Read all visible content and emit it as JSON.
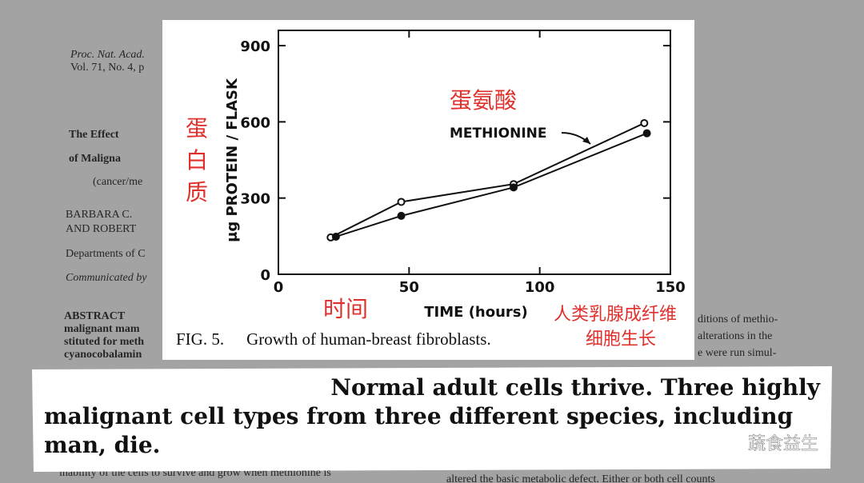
{
  "chart_data": {
    "type": "line",
    "y_label": "μg PROTEIN / FLASK",
    "x_label": "TIME (hours)",
    "xlim": [
      0,
      150
    ],
    "xticks": [
      0,
      50,
      100,
      150
    ],
    "ylim": [
      0,
      960
    ],
    "yticks": [
      0,
      300,
      600,
      900
    ],
    "series": [
      {
        "color": "#111111",
        "marker": "open",
        "x": [
          20,
          47,
          90,
          140
        ],
        "values": [
          145,
          285,
          355,
          595
        ]
      },
      {
        "color": "#111111",
        "marker": "filled",
        "x": [
          22,
          47,
          90,
          141
        ],
        "values": [
          148,
          230,
          342,
          555
        ]
      }
    ],
    "annotations": [
      "METHIONINE",
      "蛋氨酸",
      "蛋白质",
      "时间",
      "人类乳腺成纤维",
      "细胞生长"
    ],
    "caption": {
      "label": "FIG. 5.",
      "text": "Growth of human-breast fibroblasts."
    }
  },
  "document": {
    "lines": [
      "Proc. Nat. Acad.",
      "Vol. 71, No. 4, p",
      "The Effect",
      "of Maligna",
      "(cancer/me",
      "BARBARA C.",
      "AND ROBERT",
      "Departments of C",
      "Communicated by",
      "ABSTRACT",
      "malignant mam",
      "stituted for meth",
      "cyanocobalamin",
      "ditions of methio-",
      "alterations in the",
      "e were run simul-",
      "inability of the cells to survive and grow when methionine is",
      "altered the basic metabolic defect. Either or both cell counts"
    ]
  },
  "banner": {
    "lines": [
      "Normal adult cells thrive. Three highly",
      "malignant cell types from three different species, including",
      "man, die."
    ]
  },
  "watermark": "蔬食益生"
}
